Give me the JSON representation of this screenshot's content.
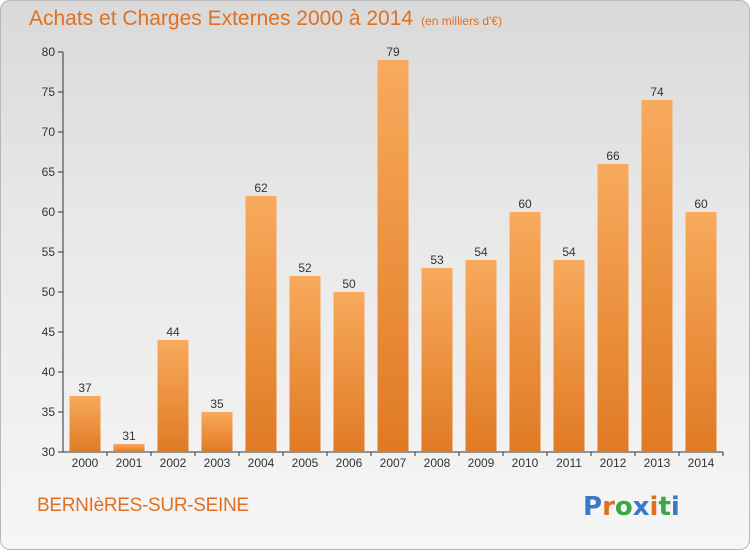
{
  "header": {
    "title": "Achats et Charges Externes 2000 à 2014",
    "unit": "(en milliers d'€)"
  },
  "footer": {
    "commune": "BERNIèRES-SUR-SEINE",
    "brand": "Proxiti"
  },
  "colors": {
    "accent": "#e07020",
    "bar_light": "#f8a858",
    "bar_dark": "#e07a24"
  },
  "chart_data": {
    "type": "bar",
    "title": "Achats et Charges Externes 2000 à 2014",
    "subtitle": "(en milliers d'€)",
    "categories": [
      "2000",
      "2001",
      "2002",
      "2003",
      "2004",
      "2005",
      "2006",
      "2007",
      "2008",
      "2009",
      "2010",
      "2011",
      "2012",
      "2013",
      "2014"
    ],
    "values": [
      37,
      31,
      44,
      35,
      62,
      52,
      50,
      79,
      53,
      54,
      60,
      54,
      66,
      74,
      60
    ],
    "ylim": [
      30,
      80
    ],
    "yticks": [
      30,
      35,
      40,
      45,
      50,
      55,
      60,
      65,
      70,
      75,
      80
    ],
    "grid": false,
    "data_labels": true
  }
}
